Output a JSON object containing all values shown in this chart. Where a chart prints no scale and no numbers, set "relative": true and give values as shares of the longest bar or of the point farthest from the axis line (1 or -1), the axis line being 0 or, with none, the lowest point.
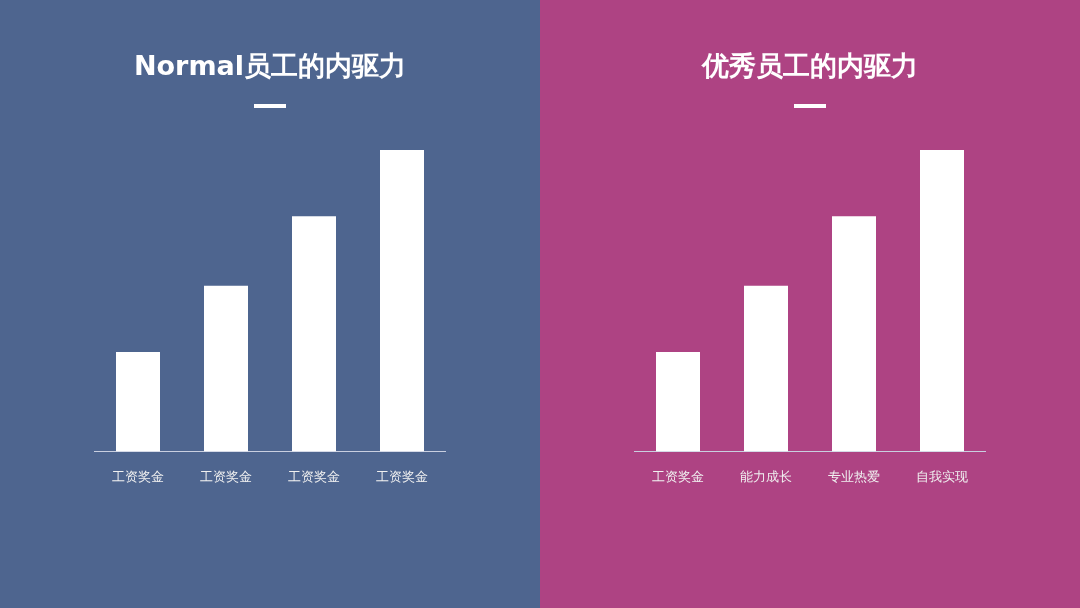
{
  "chart_data": [
    {
      "type": "bar",
      "title": "Normal员工的内驱力",
      "categories": [
        "工资奖金",
        "工资奖金",
        "工资奖金",
        "工资奖金"
      ],
      "values": [
        0.33,
        0.55,
        0.78,
        1
      ],
      "color": "#ffffff",
      "relative": true
    },
    {
      "type": "bar",
      "title": "优秀员工的内驱力",
      "categories": [
        "工资奖金",
        "能力成长",
        "专业热爱",
        "自我实现"
      ],
      "values": [
        0.33,
        0.55,
        0.78,
        1
      ],
      "color": "#ffffff",
      "relative": true
    }
  ]
}
